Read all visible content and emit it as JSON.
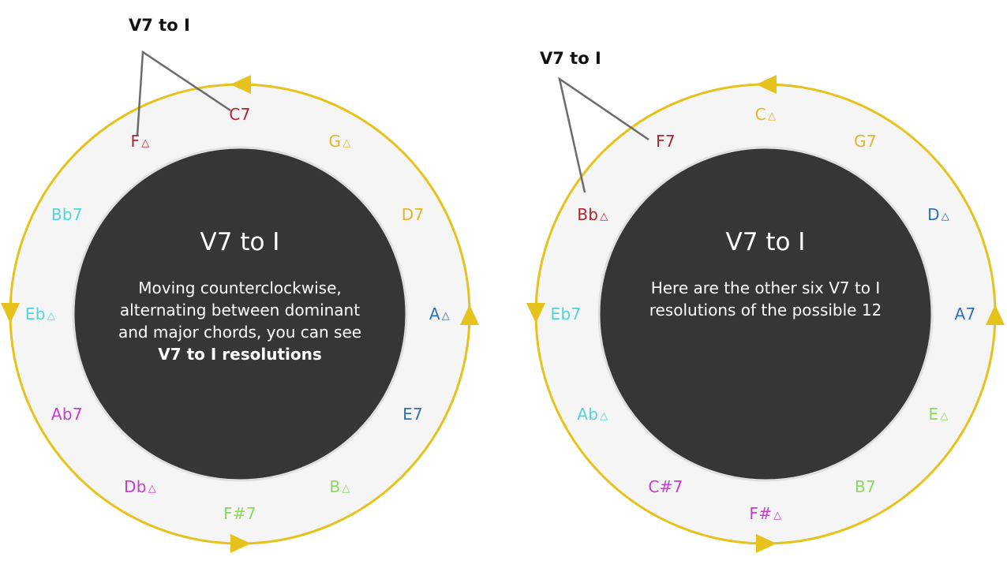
{
  "colors": {
    "ring": "#e6c21c",
    "ring_fill": "#f5f5f5",
    "center": "#363636",
    "red": "#b5232e",
    "yellow": "#e2b52a",
    "cyan": "#4fd4dc",
    "blue": "#2d6fbf",
    "green": "#8ed65e",
    "magenta": "#c83bd0",
    "callout_line": "#6b6b6b"
  },
  "left": {
    "callout": "V7 to I",
    "title": "V7 to I",
    "body": [
      "Moving counterclockwise,",
      "alternating between dominant",
      "and major chords, you can see"
    ],
    "body_strong": "V7 to I resolutions",
    "chords": [
      {
        "name": "C7",
        "tri": false,
        "color": "red"
      },
      {
        "name": "G",
        "tri": true,
        "color": "yellow"
      },
      {
        "name": "D7",
        "tri": false,
        "color": "yellow"
      },
      {
        "name": "A",
        "tri": true,
        "color": "blue"
      },
      {
        "name": "E7",
        "tri": false,
        "color": "blue"
      },
      {
        "name": "B",
        "tri": true,
        "color": "green"
      },
      {
        "name": "F#7",
        "tri": false,
        "color": "green"
      },
      {
        "name": "Db",
        "tri": true,
        "color": "magenta"
      },
      {
        "name": "Ab7",
        "tri": false,
        "color": "magenta"
      },
      {
        "name": "Eb",
        "tri": true,
        "color": "cyan"
      },
      {
        "name": "Bb7",
        "tri": false,
        "color": "cyan"
      },
      {
        "name": "F",
        "tri": true,
        "color": "red"
      }
    ]
  },
  "right": {
    "callout": "V7 to I",
    "title": "V7 to I",
    "body": [
      "Here are the other six V7 to I",
      "resolutions of the possible 12"
    ],
    "chords": [
      {
        "name": "C",
        "tri": true,
        "color": "yellow"
      },
      {
        "name": "G7",
        "tri": false,
        "color": "yellow"
      },
      {
        "name": "D",
        "tri": true,
        "color": "blue"
      },
      {
        "name": "A7",
        "tri": false,
        "color": "blue"
      },
      {
        "name": "E",
        "tri": true,
        "color": "green"
      },
      {
        "name": "B7",
        "tri": false,
        "color": "green"
      },
      {
        "name": "F#",
        "tri": true,
        "color": "magenta"
      },
      {
        "name": "C#7",
        "tri": false,
        "color": "magenta"
      },
      {
        "name": "Ab",
        "tri": true,
        "color": "cyan"
      },
      {
        "name": "Eb7",
        "tri": false,
        "color": "cyan"
      },
      {
        "name": "Bb",
        "tri": true,
        "color": "red"
      },
      {
        "name": "F7",
        "tri": false,
        "color": "red"
      }
    ]
  }
}
